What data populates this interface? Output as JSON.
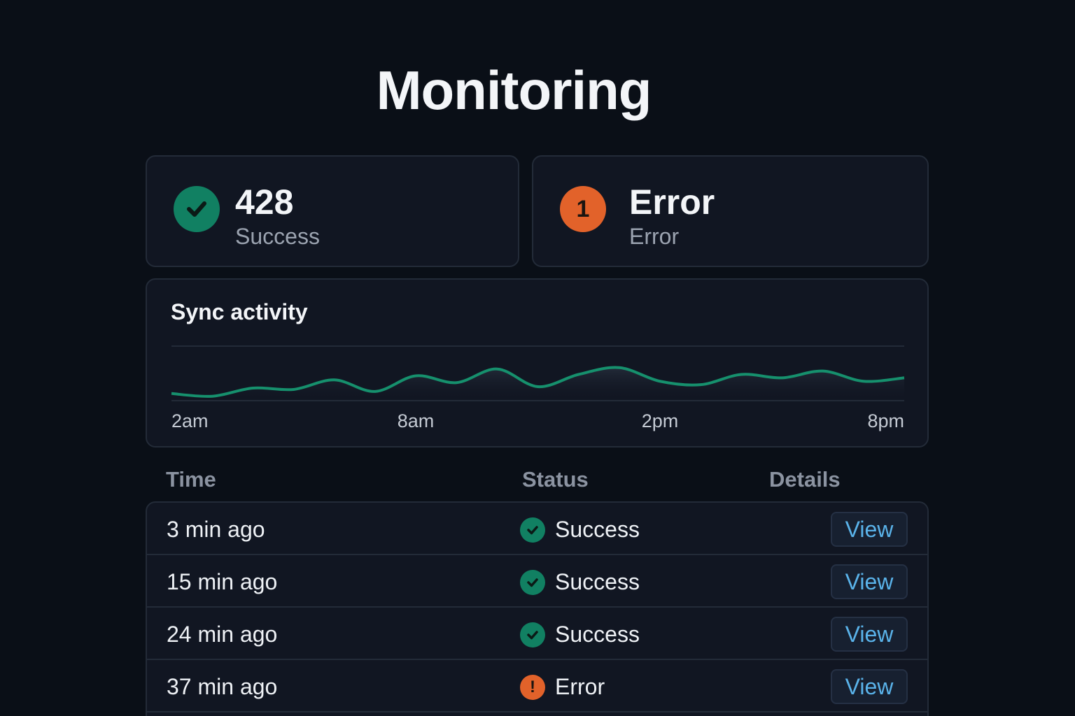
{
  "header": {
    "title": "Monitoring"
  },
  "stats": {
    "success": {
      "value": "428",
      "label": "Success",
      "icon": "check-icon",
      "color": "#118062"
    },
    "error": {
      "value": "Error",
      "label": "Error",
      "badge": "1",
      "color": "#e2622a"
    }
  },
  "chart": {
    "title": "Sync activity"
  },
  "chart_data": {
    "type": "area",
    "title": "Sync activity",
    "x_ticks": [
      "2am",
      "8am",
      "2pm",
      "8pm"
    ],
    "x": [
      2,
      3,
      4,
      5,
      6,
      7,
      8,
      9,
      10,
      11,
      12,
      13,
      14,
      15,
      16,
      17,
      18,
      19,
      20
    ],
    "values": [
      32,
      28,
      40,
      38,
      52,
      35,
      58,
      48,
      68,
      42,
      60,
      70,
      50,
      45,
      60,
      55,
      65,
      50,
      55
    ],
    "ylim": [
      0,
      100
    ],
    "grid": true,
    "line_color": "#16906d"
  },
  "table": {
    "headers": {
      "time": "Time",
      "status": "Status",
      "details": "Details"
    },
    "rows": [
      {
        "time": "3 min ago",
        "status": "Success",
        "kind": "success",
        "action": "View"
      },
      {
        "time": "15 min ago",
        "status": "Success",
        "kind": "success",
        "action": "View"
      },
      {
        "time": "24 min ago",
        "status": "Success",
        "kind": "success",
        "action": "View"
      },
      {
        "time": "37 min ago",
        "status": "Error",
        "kind": "error",
        "action": "View"
      }
    ],
    "error_mark": "!"
  }
}
